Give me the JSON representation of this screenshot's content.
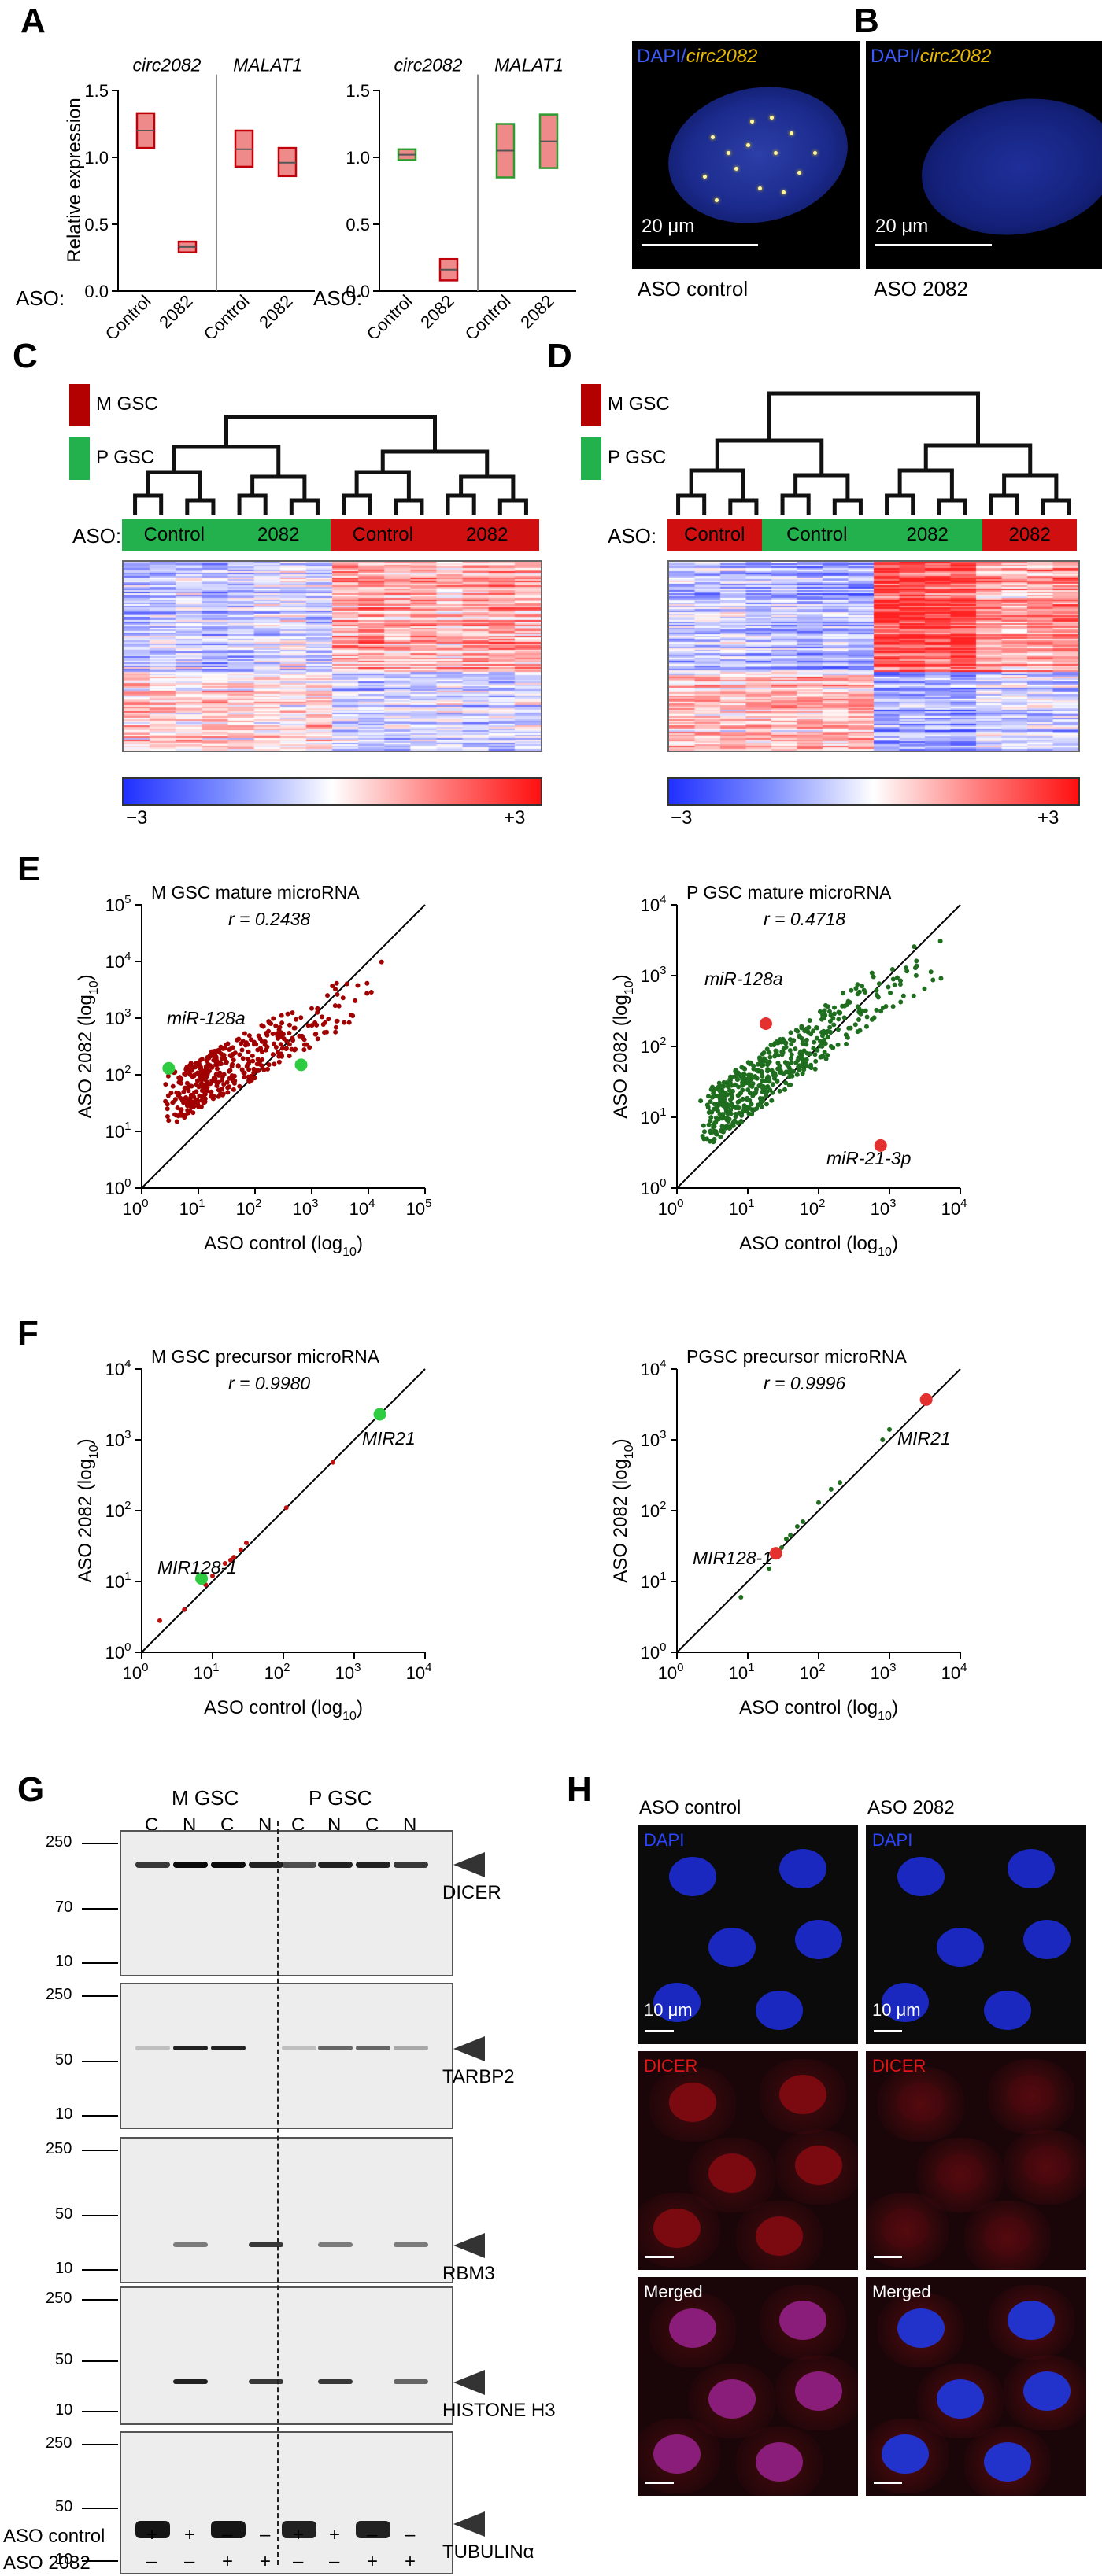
{
  "panels": {
    "A": "A",
    "B": "B",
    "C": "C",
    "D": "D",
    "E": "E",
    "F": "F",
    "G": "G",
    "H": "H"
  },
  "panelA": {
    "ylabel": "Relative expression",
    "aso_label": "ASO:",
    "yticks": [
      "0.0",
      "0.5",
      "1.0",
      "1.5"
    ],
    "chart_left": {
      "titles": [
        "circ2082",
        "MALAT1"
      ],
      "xlabels": [
        "Control",
        "2082",
        "Control",
        "2082"
      ],
      "boxes": [
        {
          "group": "circ2082",
          "label": "Control",
          "min": 1.07,
          "max": 1.33,
          "mid": 1.2
        },
        {
          "group": "circ2082",
          "label": "2082",
          "min": 0.29,
          "max": 0.37,
          "mid": 0.33
        },
        {
          "group": "MALAT1",
          "label": "Control",
          "min": 0.93,
          "max": 1.2,
          "mid": 1.06
        },
        {
          "group": "MALAT1",
          "label": "2082",
          "min": 0.86,
          "max": 1.07,
          "mid": 0.96
        }
      ],
      "edge_color": "#c0000a",
      "fill_color": "#ef8a8a"
    },
    "chart_right": {
      "titles": [
        "circ2082",
        "MALAT1"
      ],
      "xlabels": [
        "Control",
        "2082",
        "Control",
        "2082"
      ],
      "boxes": [
        {
          "group": "circ2082",
          "label": "Control",
          "min": 0.98,
          "max": 1.06,
          "mid": 1.02
        },
        {
          "group": "circ2082",
          "label": "2082",
          "min": 0.08,
          "max": 0.24,
          "mid": 0.16
        },
        {
          "group": "MALAT1",
          "label": "Control",
          "min": 0.85,
          "max": 1.25,
          "mid": 1.05
        },
        {
          "group": "MALAT1",
          "label": "2082",
          "min": 0.92,
          "max": 1.32,
          "mid": 1.12
        }
      ],
      "edge_color_control": "#2e9b2e",
      "edge_color_2082": "#c0000a",
      "fill_color": "#ef8a8a"
    }
  },
  "panelB": {
    "label_dapi": "DAPI",
    "label_slash": "/",
    "label_circ": "circ2082",
    "scale": "20 μm",
    "captions": [
      "ASO control",
      "ASO 2082"
    ]
  },
  "legend": {
    "m_gsc": "M GSC",
    "p_gsc": "P GSC",
    "aso": "ASO:",
    "scale_min": "−3",
    "scale_max": "+3"
  },
  "panelC": {
    "bar_labels": [
      "Control",
      "2082",
      "Control",
      "2082"
    ]
  },
  "panelD": {
    "bar_labels": [
      "Control",
      "Control",
      "2082",
      "2082"
    ]
  },
  "panelE": {
    "left": {
      "title": "M GSC mature microRNA",
      "r": "r = 0.2438",
      "ann1": "miR-128a",
      "ann2": "miR-21-3p",
      "xlabel": "ASO control (log",
      "ylabel": "ASO 2082 (log",
      "sub": "10",
      "close": ")",
      "xtick_exps": [
        "0",
        "1",
        "2",
        "3",
        "4",
        "5"
      ],
      "ytick_exps": [
        "0",
        "1",
        "2",
        "3",
        "4",
        "5"
      ],
      "base": "10"
    },
    "right": {
      "title": "P GSC mature microRNA",
      "r": "r = 0.4718",
      "ann1": "miR-128a",
      "ann2": "miR-21-3p",
      "xlabel": "ASO control (log",
      "ylabel": "ASO 2082 (log",
      "sub": "10",
      "close": ")",
      "xtick_exps": [
        "0",
        "1",
        "2",
        "3",
        "4"
      ],
      "ytick_exps": [
        "0",
        "1",
        "2",
        "3",
        "4"
      ],
      "base": "10"
    }
  },
  "panelF": {
    "left": {
      "title": "M GSC precursor microRNA",
      "r": "r = 0.9980",
      "ann1": "MIR21",
      "ann2": "MIR128-1",
      "xlabel": "ASO control (log",
      "ylabel": "ASO 2082 (log",
      "sub": "10",
      "close": ")",
      "xtick_exps": [
        "0",
        "1",
        "2",
        "3",
        "4"
      ],
      "ytick_exps": [
        "0",
        "1",
        "2",
        "3",
        "4"
      ],
      "base": "10"
    },
    "right": {
      "title": "PGSC precursor microRNA",
      "r": "r = 0.9996",
      "ann1": "MIR21",
      "ann2": "MIR128-1",
      "xlabel": "ASO control (log",
      "ylabel": "ASO 2082 (log",
      "sub": "10",
      "close": ")",
      "xtick_exps": [
        "0",
        "1",
        "2",
        "3",
        "4"
      ],
      "ytick_exps": [
        "0",
        "1",
        "2",
        "3",
        "4"
      ],
      "base": "10"
    }
  },
  "chart_data": [
    {
      "type": "bar",
      "title": "circ2082 / MALAT1 relative expression (M GSC)",
      "categories": [
        "circ2082 Control",
        "circ2082 2082",
        "MALAT1 Control",
        "MALAT1 2082"
      ],
      "values": [
        1.2,
        0.33,
        1.06,
        0.96
      ],
      "ylabel": "Relative expression",
      "ylim": [
        0,
        1.5
      ]
    },
    {
      "type": "bar",
      "title": "circ2082 / MALAT1 relative expression (P GSC)",
      "categories": [
        "circ2082 Control",
        "circ2082 2082",
        "MALAT1 Control",
        "MALAT1 2082"
      ],
      "values": [
        1.02,
        0.16,
        1.05,
        1.12
      ],
      "ylabel": "Relative expression",
      "ylim": [
        0,
        1.5
      ]
    },
    {
      "type": "scatter",
      "title": "M GSC mature microRNA",
      "xlabel": "ASO control (log10)",
      "ylabel": "ASO 2082 (log10)",
      "xlim": [
        1,
        100000
      ],
      "ylim": [
        1,
        100000
      ],
      "highlighted": [
        {
          "name": "miR-128a",
          "x": 3,
          "y": 130
        },
        {
          "name": "miR-21-3p",
          "x": 650,
          "y": 150
        }
      ],
      "r": 0.2438
    },
    {
      "type": "scatter",
      "title": "P GSC mature microRNA",
      "xlabel": "ASO control (log10)",
      "ylabel": "ASO 2082 (log10)",
      "xlim": [
        1,
        10000
      ],
      "ylim": [
        1,
        10000
      ],
      "highlighted": [
        {
          "name": "miR-128a",
          "x": 18,
          "y": 210
        },
        {
          "name": "miR-21-3p",
          "x": 750,
          "y": 4
        }
      ],
      "r": 0.4718
    },
    {
      "type": "scatter",
      "title": "M GSC precursor microRNA",
      "xlabel": "ASO control (log10)",
      "ylabel": "ASO 2082 (log10)",
      "xlim": [
        1,
        10000
      ],
      "ylim": [
        1,
        10000
      ],
      "highlighted": [
        {
          "name": "MIR21",
          "x": 2300,
          "y": 2300
        },
        {
          "name": "MIR128-1",
          "x": 7,
          "y": 11
        }
      ],
      "r": 0.998
    },
    {
      "type": "scatter",
      "title": "PGSC precursor microRNA",
      "xlabel": "ASO control (log10)",
      "ylabel": "ASO 2082 (log10)",
      "xlim": [
        1,
        10000
      ],
      "ylim": [
        1,
        10000
      ],
      "highlighted": [
        {
          "name": "MIR21",
          "x": 3300,
          "y": 3700
        },
        {
          "name": "MIR128-1",
          "x": 25,
          "y": 25
        }
      ],
      "r": 0.9996
    }
  ],
  "panelG": {
    "header_m": "M GSC",
    "header_p": "P GSC",
    "lanes": [
      "C",
      "N",
      "C",
      "N",
      "C",
      "N",
      "C",
      "N"
    ],
    "ladder": [
      [
        "250",
        "70",
        "10"
      ],
      [
        "250",
        "50",
        "10"
      ],
      [
        "250",
        "50",
        "10"
      ],
      [
        "250",
        "50",
        "10"
      ],
      [
        "250",
        "50",
        "10"
      ]
    ],
    "proteins": [
      "DICER",
      "TARBP2",
      "RBM3",
      "HISTONE H3",
      "TUBULINα"
    ],
    "row1": "ASO control",
    "row2": "ASO 2082",
    "signs1": [
      "+",
      "+",
      "–",
      "–",
      "+",
      "+",
      "–",
      "–"
    ],
    "signs2": [
      "–",
      "–",
      "+",
      "+",
      "–",
      "–",
      "+",
      "+"
    ]
  },
  "panelH": {
    "col1": "ASO control",
    "col2": "ASO 2082",
    "ch_dapi": "DAPI",
    "ch_dicer": "DICER",
    "ch_merged": "Merged",
    "scale": "10 μm"
  }
}
